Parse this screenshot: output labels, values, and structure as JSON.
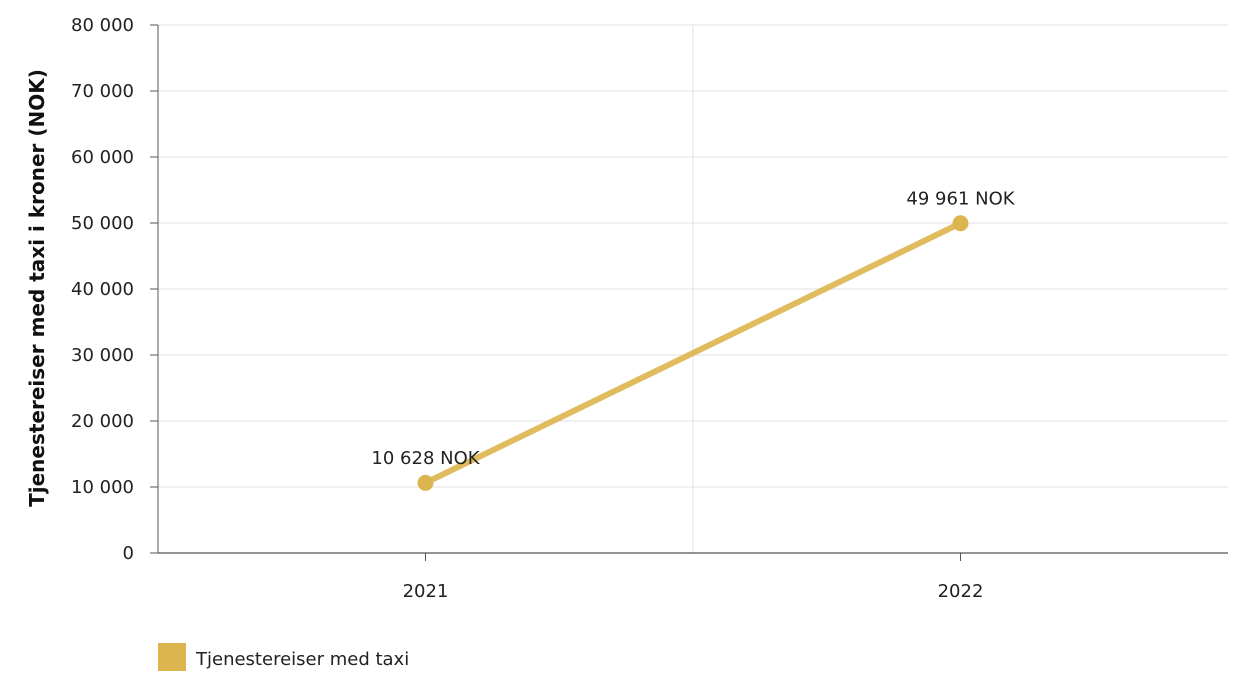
{
  "chart_data": {
    "type": "line",
    "title": "",
    "xlabel": "",
    "ylabel": "Tjenestereiser med taxi i kroner (NOK)",
    "categories": [
      "2021",
      "2022"
    ],
    "series": [
      {
        "name": "Tjenestereiser med taxi",
        "values": [
          10628,
          49961
        ],
        "data_labels": [
          "10 628 NOK",
          "49 961 NOK"
        ],
        "color": "#ddb54e"
      }
    ],
    "ylim": [
      0,
      80000
    ],
    "yticks": [
      0,
      10000,
      20000,
      30000,
      40000,
      50000,
      60000,
      70000,
      80000
    ],
    "ytick_labels": [
      "0",
      "10 000",
      "20 000",
      "30 000",
      "40 000",
      "50 000",
      "60 000",
      "70 000",
      "80 000"
    ],
    "grid": true,
    "legend_position": "bottom-left",
    "axis_color": "#555555",
    "grid_color": "#e2e2e2"
  }
}
